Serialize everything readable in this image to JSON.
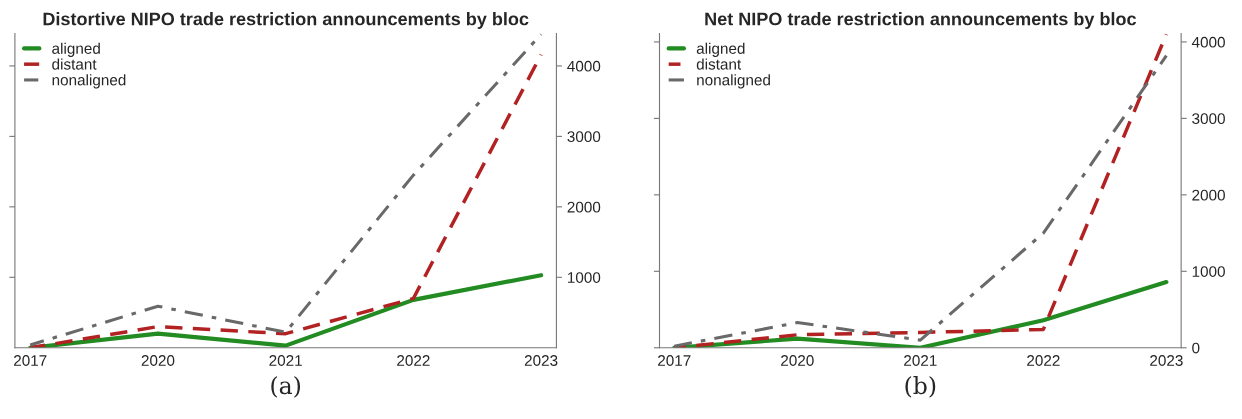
{
  "chart_data": [
    {
      "type": "line",
      "title": "Distortive NIPO trade restriction announcements by bloc",
      "categories": [
        "2017",
        "2020",
        "2021",
        "2022",
        "2023"
      ],
      "ylim": [
        0,
        4460
      ],
      "yticks": [
        1000,
        2000,
        3000,
        4000
      ],
      "legend": "top left",
      "grid": false,
      "annotations": [
        "(a)"
      ],
      "series": [
        {
          "name": "aligned",
          "color": "#228b22",
          "line_style": "solid",
          "values": [
            0,
            200,
            30,
            680,
            1030
          ]
        },
        {
          "name": "distant",
          "color": "#b22222",
          "line_style": "dashed",
          "values": [
            0,
            300,
            200,
            700,
            4160
          ]
        },
        {
          "name": "nonaligned",
          "color": "#696969",
          "line_style": "dashdot",
          "values": [
            40,
            590,
            220,
            2450,
            4450
          ]
        }
      ]
    },
    {
      "type": "line",
      "title": "Net NIPO trade restriction announcements by bloc",
      "categories": [
        "2017",
        "2020",
        "2021",
        "2022",
        "2023"
      ],
      "ylim": [
        0,
        4110
      ],
      "yticks": [
        0,
        1000,
        2000,
        3000,
        4000
      ],
      "legend": "top left",
      "grid": false,
      "annotations": [
        "(b)"
      ],
      "series": [
        {
          "name": "aligned",
          "color": "#228b22",
          "line_style": "solid",
          "values": [
            0,
            120,
            0,
            360,
            860
          ]
        },
        {
          "name": "distant",
          "color": "#b22222",
          "line_style": "dashed",
          "values": [
            0,
            170,
            200,
            240,
            4100
          ]
        },
        {
          "name": "nonaligned",
          "color": "#696969",
          "line_style": "dashdot",
          "values": [
            20,
            330,
            100,
            1500,
            3820
          ]
        }
      ]
    }
  ]
}
